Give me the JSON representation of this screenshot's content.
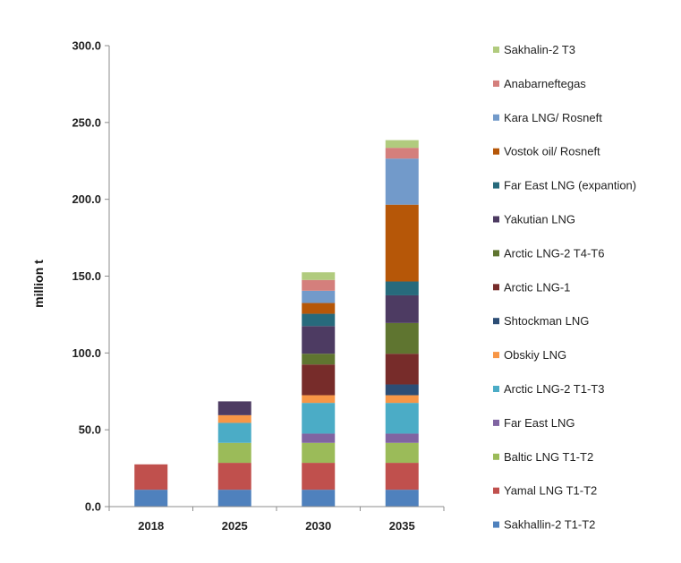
{
  "chart_data": {
    "type": "bar",
    "stacked": true,
    "title": "",
    "xlabel": "",
    "ylabel": "million t",
    "ylim": [
      0,
      300
    ],
    "yticks": [
      "0.0",
      "50.0",
      "100.0",
      "150.0",
      "200.0",
      "250.0",
      "300.0"
    ],
    "categories": [
      "2018",
      "2025",
      "2030",
      "2035"
    ],
    "grid": false,
    "legend_position": "right",
    "series": [
      {
        "name": "Sakhallin-2 T1-T2",
        "color": "#4f81bd",
        "values": [
          11,
          11,
          11,
          11
        ]
      },
      {
        "name": "Yamal LNG T1-T2",
        "color": "#c0504d",
        "values": [
          16.5,
          17.5,
          17.5,
          17.5
        ]
      },
      {
        "name": "Baltic LNG T1-T2",
        "color": "#9bbb59",
        "values": [
          0,
          13,
          13,
          13
        ]
      },
      {
        "name": "Far East LNG",
        "color": "#8064a2",
        "values": [
          0,
          0,
          6,
          6
        ]
      },
      {
        "name": "Arctic LNG-2 T1-T3",
        "color": "#4bacc6",
        "values": [
          0,
          13,
          20,
          20
        ]
      },
      {
        "name": "Obskiy LNG",
        "color": "#f79646",
        "values": [
          0,
          5,
          5,
          5
        ]
      },
      {
        "name": "Shtockman LNG",
        "color": "#2c4d75",
        "values": [
          0,
          0,
          0,
          7
        ]
      },
      {
        "name": "Arctic LNG-1",
        "color": "#772c2a",
        "values": [
          0,
          0,
          20,
          20
        ]
      },
      {
        "name": "Arctic LNG-2 T4-T6",
        "color": "#5f7530",
        "values": [
          0,
          0,
          7,
          20
        ]
      },
      {
        "name": "Yakutian LNG",
        "color": "#4d3b62",
        "values": [
          0,
          9,
          18,
          18
        ]
      },
      {
        "name": "Far East LNG (expantion)",
        "color": "#276a7c",
        "values": [
          0,
          0,
          8,
          9
        ]
      },
      {
        "name": "Vostok oil/ Rosneft",
        "color": "#b65708",
        "values": [
          0,
          0,
          7,
          50
        ]
      },
      {
        "name": "Kara LNG/ Rosneft",
        "color": "#729aca",
        "values": [
          0,
          0,
          8,
          30
        ]
      },
      {
        "name": "Anabarneftegas",
        "color": "#d47f7c",
        "values": [
          0,
          0,
          7,
          7
        ]
      },
      {
        "name": "Sakhalin-2 T3",
        "color": "#b1cb7e",
        "values": [
          0,
          0,
          5,
          5
        ]
      }
    ]
  }
}
